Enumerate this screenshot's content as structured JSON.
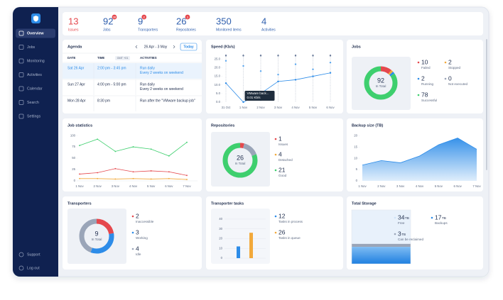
{
  "sidebar": {
    "items": [
      "Overview",
      "Jobs",
      "Monitoring",
      "Activities",
      "Calendar",
      "Search",
      "Settings"
    ],
    "active": 0,
    "footer": [
      "Support",
      "Log out"
    ]
  },
  "stats": [
    {
      "value": 13,
      "label": "Issues",
      "color": "#e5484d"
    },
    {
      "value": 92,
      "label": "Jobs",
      "badge": 10,
      "color": "#2f5fae"
    },
    {
      "value": 9,
      "label": "Transporters",
      "badge": 2,
      "color": "#2f5fae"
    },
    {
      "value": 26,
      "label": "Repositories",
      "badge": 1,
      "color": "#2f5fae"
    },
    {
      "value": 350,
      "label": "Monitored items",
      "color": "#2f5fae"
    },
    {
      "value": 4,
      "label": "Activities",
      "color": "#2f5fae"
    }
  ],
  "agenda": {
    "title": "Agenda",
    "range": "26 Apr - 3 May",
    "button": "Today",
    "columns": [
      "DATE",
      "TIME",
      "ACTIVITIES"
    ],
    "timezone": "GMT +01",
    "highlight": 0,
    "rows": [
      [
        "Sat 26 Apr",
        "2:00 pm - 3:45 pm",
        "Run daily",
        "Every 2 weeks on weekend"
      ],
      [
        "Sun 27 Apr",
        "4:00 pm - 5:00 pm",
        "Run daily",
        "Every 2 weeks on weekend"
      ],
      [
        "Mon 28 Apr",
        "8:30 pm",
        "Run after the \"VMware backup job\""
      ]
    ]
  },
  "chart_data": [
    {
      "type": "line",
      "title": "Speed (Kb/s)",
      "categories": [
        "31 Oct",
        "1 Nov",
        "2 Nov",
        "3 Nov",
        "4 Nov",
        "5 Nov",
        "6 Nov"
      ],
      "ylim": [
        0,
        28
      ],
      "yticks": [
        {
          "value": 0,
          "label": "0.0"
        },
        {
          "value": 5,
          "label": "5.0"
        },
        {
          "value": 10,
          "label": "10.0"
        },
        {
          "value": 15,
          "label": "15.0"
        },
        {
          "value": 20,
          "label": "20.0"
        },
        {
          "value": 25,
          "label": "25.0"
        }
      ],
      "grid": "x",
      "series": [
        {
          "name": "VMware back...",
          "color": "#2d8ce8",
          "values": [
            11,
            0.01,
            5,
            12,
            13,
            15,
            17
          ]
        },
        {
          "type": "scatter",
          "color": "#5c6f91",
          "values": [
            27,
            27,
            27,
            27,
            27,
            27,
            27
          ]
        },
        {
          "type": "scatter",
          "color": "#5aa7ef",
          "values": [
            24,
            21,
            18,
            16,
            22,
            19,
            23
          ]
        }
      ],
      "tooltip": {
        "index": 1,
        "label": "0.01 Kb/s"
      }
    },
    {
      "type": "donut",
      "title": "Jobs",
      "total": 92,
      "total_label": "In Total",
      "categories": [
        "Failed",
        "Stopped",
        "Running",
        "Not executed",
        "Successful"
      ],
      "values": [
        10,
        2,
        2,
        0,
        78
      ],
      "colors": [
        "#e5484d",
        "#f2a93b",
        "#2d8ce8",
        "#9aa5b8",
        "#3ecf6e"
      ],
      "legend_columns": 2
    },
    {
      "type": "line",
      "title": "Job statistics",
      "categories": [
        "1 Nov",
        "2 Nov",
        "3 Nov",
        "4 Nov",
        "5 Nov",
        "6 Nov",
        "7 Nov"
      ],
      "ylim": [
        0,
        108
      ],
      "yticks": [
        0,
        25,
        50,
        75,
        100
      ],
      "grid": false,
      "series": [
        {
          "color": "#3ecf6e",
          "values": [
            78,
            92,
            65,
            75,
            70,
            55,
            85
          ]
        },
        {
          "color": "#e5484d",
          "values": [
            15,
            18,
            27,
            20,
            22,
            20,
            12
          ]
        },
        {
          "color": "#f2a93b",
          "values": [
            5,
            5,
            4,
            5,
            4,
            5,
            3
          ]
        }
      ]
    },
    {
      "type": "donut",
      "title": "Repositories",
      "total": 26,
      "total_label": "In Total",
      "categories": [
        "Issues",
        "Detached",
        "Good"
      ],
      "values": [
        1,
        4,
        21
      ],
      "colors": [
        "#e5484d",
        "#9aa5b8",
        "#3ecf6e"
      ],
      "legend_colors": [
        "#e5484d",
        "#f2a93b",
        "#3ecf6e"
      ],
      "legend_columns": 1
    },
    {
      "type": "area",
      "title": "Backup size (TB)",
      "categories": [
        "1 Nov",
        "2 Nov",
        "3 Nov",
        "4 Nov",
        "5 Nov",
        "6 Nov",
        "7 Nov"
      ],
      "ylim": [
        0,
        22
      ],
      "yticks": [
        0,
        5,
        10,
        15,
        20
      ],
      "grid": false,
      "series": [
        {
          "color": "#2d8ce8",
          "values": [
            7,
            9,
            8,
            11,
            16,
            19,
            14
          ]
        }
      ]
    },
    {
      "type": "donut",
      "title": "Transporters",
      "total": 9,
      "total_label": "In Total",
      "categories": [
        "Inaccessible",
        "Working",
        "Idle"
      ],
      "values": [
        2,
        3,
        4
      ],
      "colors": [
        "#e5484d",
        "#2d8ce8",
        "#9aa5b8"
      ],
      "legend_columns": 1
    },
    {
      "type": "bar",
      "title": "Transporter tasks",
      "ylim": [
        0,
        45
      ],
      "yticks": [
        0,
        10,
        20,
        30,
        40
      ],
      "grid": true,
      "series": [
        {
          "name": "Tasks in process",
          "color": "#2d8ce8",
          "values": [
            12
          ]
        },
        {
          "name": "Tasks in queue",
          "color": "#f2a93b",
          "values": [
            26
          ]
        }
      ]
    },
    {
      "type": "storage",
      "title": "Total Storage",
      "unit": "TB",
      "categories": [
        "Free",
        "Backups",
        "Can be reclaimed"
      ],
      "values": [
        34,
        17,
        3
      ],
      "colors": [
        "#e8f1fb",
        "#2d8ce8",
        "#9aa5b8"
      ]
    }
  ]
}
